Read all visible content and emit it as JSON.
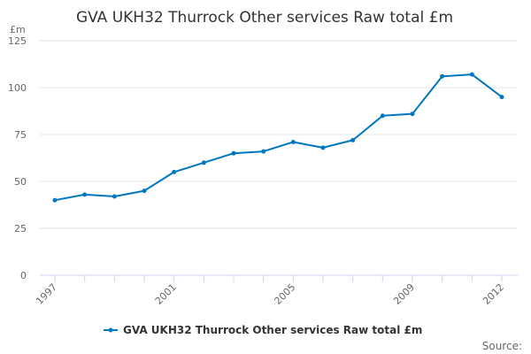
{
  "chart_data": {
    "type": "line",
    "title": "GVA UKH32 Thurrock Other services Raw total £m",
    "ylabel": "£m",
    "xlabel": "",
    "x": [
      1997,
      1998,
      1999,
      2000,
      2001,
      2002,
      2003,
      2004,
      2005,
      2006,
      2007,
      2008,
      2009,
      2010,
      2011,
      2012
    ],
    "x_tick_labels": [
      "1997",
      "2001",
      "2005",
      "2009",
      "2012"
    ],
    "y_tick_labels": [
      "0",
      "25",
      "50",
      "75",
      "100",
      "125"
    ],
    "ylim": [
      0,
      125
    ],
    "grid": true,
    "legend_placement": "bottom",
    "series": [
      {
        "name": "GVA UKH32 Thurrock Other services Raw total £m",
        "color": "#0077c0",
        "values": [
          40,
          43,
          42,
          45,
          55,
          60,
          65,
          66,
          71,
          68,
          72,
          85,
          86,
          106,
          107,
          95
        ]
      }
    ]
  },
  "credit": "Source:"
}
